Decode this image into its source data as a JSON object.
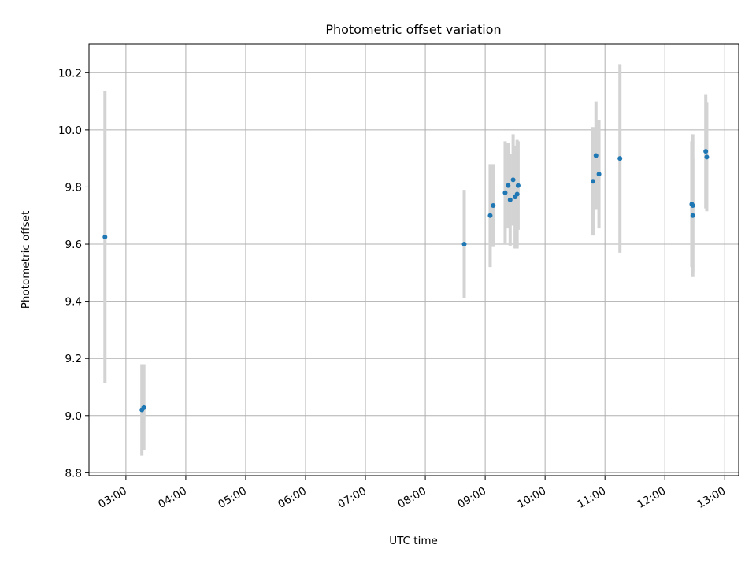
{
  "chart_data": {
    "type": "scatter",
    "title": "Photometric offset variation",
    "xlabel": "UTC time",
    "ylabel": "Photometric offset",
    "xlim": [
      "02:23",
      "13:14"
    ],
    "ylim": [
      8.79,
      10.3
    ],
    "x_ticks": [
      "03:00",
      "04:00",
      "05:00",
      "06:00",
      "07:00",
      "08:00",
      "09:00",
      "10:00",
      "11:00",
      "12:00",
      "13:00"
    ],
    "y_ticks": [
      8.8,
      9.0,
      9.2,
      9.4,
      9.6,
      9.8,
      10.0,
      10.2
    ],
    "grid": true,
    "point_color": "#1f77b4",
    "errorbar_color": "#d3d3d3",
    "points": [
      {
        "x": "02:39",
        "y": 9.625,
        "err": 0.51
      },
      {
        "x": "03:16",
        "y": 9.02,
        "err": 0.16
      },
      {
        "x": "03:18",
        "y": 9.03,
        "err": 0.15
      },
      {
        "x": "08:39",
        "y": 9.6,
        "err": 0.19
      },
      {
        "x": "09:05",
        "y": 9.7,
        "err": 0.18
      },
      {
        "x": "09:08",
        "y": 9.735,
        "err": 0.145
      },
      {
        "x": "09:20",
        "y": 9.78,
        "err": 0.18
      },
      {
        "x": "09:23",
        "y": 9.805,
        "err": 0.15
      },
      {
        "x": "09:25",
        "y": 9.755,
        "err": 0.16
      },
      {
        "x": "09:28",
        "y": 9.825,
        "err": 0.16
      },
      {
        "x": "09:30",
        "y": 9.765,
        "err": 0.18
      },
      {
        "x": "09:32",
        "y": 9.775,
        "err": 0.19
      },
      {
        "x": "09:33",
        "y": 9.805,
        "err": 0.155
      },
      {
        "x": "10:48",
        "y": 9.82,
        "err": 0.19
      },
      {
        "x": "10:51",
        "y": 9.91,
        "err": 0.19
      },
      {
        "x": "10:54",
        "y": 9.845,
        "err": 0.19
      },
      {
        "x": "11:15",
        "y": 9.9,
        "err": 0.33
      },
      {
        "x": "12:27",
        "y": 9.74,
        "err": 0.22
      },
      {
        "x": "12:28",
        "y": 9.7,
        "err": 0.2
      },
      {
        "x": "12:28",
        "y": 9.735,
        "err": 0.25
      },
      {
        "x": "12:41",
        "y": 9.925,
        "err": 0.2
      },
      {
        "x": "12:42",
        "y": 9.905,
        "err": 0.19
      }
    ]
  }
}
